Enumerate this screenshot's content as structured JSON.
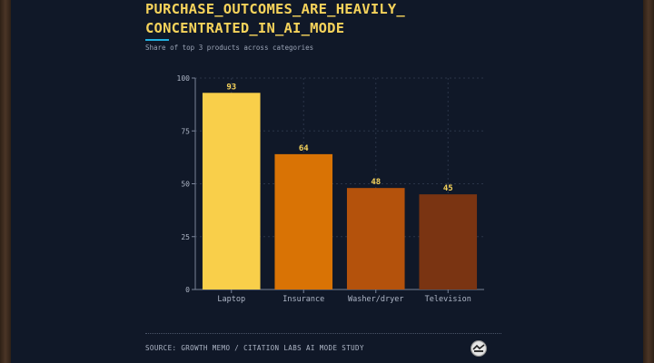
{
  "header": {
    "title_line1": "PURCHASE_OUTCOMES_ARE_HEAVILY_",
    "title_line2": "CONCENTRATED_IN_AI_MODE",
    "subtitle": "Share of top 3 products across categories"
  },
  "footer": {
    "source": "SOURCE: GROWTH MEMO / CITATION LABS AI MODE STUDY",
    "logo_icon": "logo-badge-icon"
  },
  "colors": {
    "background": "#101828",
    "title": "#f6d35b",
    "accent": "#22b0e0",
    "grid": "#2a3448",
    "axis": "#7a8499",
    "tick_text": "#aeb6c6",
    "value_label": "#f6d35b"
  },
  "chart_data": {
    "type": "bar",
    "title": "",
    "xlabel": "",
    "ylabel": "",
    "categories": [
      "Laptop",
      "Insurance",
      "Washer/dryer",
      "Television"
    ],
    "values": [
      93,
      64,
      48,
      45
    ],
    "bar_colors": [
      "#f9cf4a",
      "#d97305",
      "#b4520c",
      "#7a3412"
    ],
    "ylim": [
      0,
      100
    ],
    "yticks": [
      0,
      25,
      50,
      75,
      100
    ],
    "grid": true,
    "legend": "none",
    "data_labels": true
  }
}
